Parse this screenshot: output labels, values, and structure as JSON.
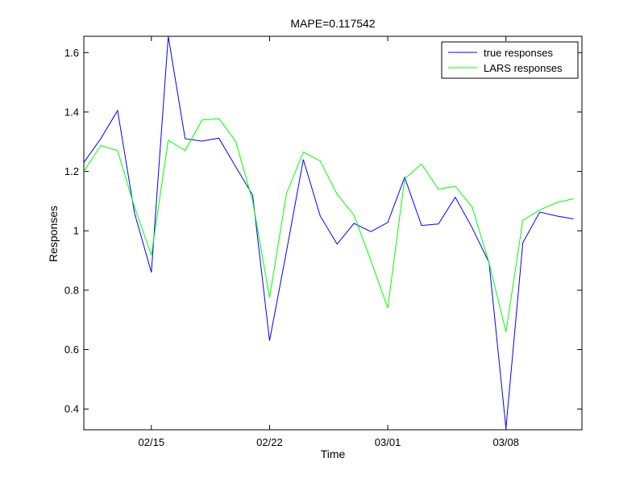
{
  "chart_data": {
    "type": "line",
    "title": "MAPE=0.117542",
    "xlabel": "Time",
    "ylabel": "Responses",
    "x_tick_labels": [
      "02/15",
      "02/22",
      "03/01",
      "03/08"
    ],
    "x_tick_index": [
      4,
      11,
      18,
      25
    ],
    "y_ticks": [
      0.4,
      0.6,
      0.8,
      1,
      1.2,
      1.4,
      1.6
    ],
    "y_tick_labels": [
      "0.4",
      "0.6",
      "0.8",
      "1",
      "1.2",
      "1.4",
      "1.6"
    ],
    "xlim": [
      0,
      29.5
    ],
    "ylim": [
      0.33,
      1.655
    ],
    "legend_position": "top-right",
    "grid": false,
    "series": [
      {
        "name": "true responses",
        "color": "#0000ff",
        "values": [
          1.23,
          1.31,
          1.405,
          1.06,
          0.86,
          1.655,
          1.31,
          1.302,
          1.312,
          1.215,
          1.12,
          0.63,
          0.93,
          1.24,
          1.05,
          0.955,
          1.025,
          0.997,
          1.028,
          1.18,
          1.018,
          1.023,
          1.113,
          1.01,
          0.893,
          0.335,
          0.96,
          1.063,
          1.05,
          1.04
        ]
      },
      {
        "name": "LARS responses",
        "color": "#00ff00",
        "values": [
          1.2,
          1.287,
          1.27,
          1.08,
          0.918,
          1.305,
          1.27,
          1.373,
          1.378,
          1.3,
          1.1,
          0.775,
          1.125,
          1.265,
          1.235,
          1.123,
          1.053,
          0.9,
          0.74,
          1.175,
          1.225,
          1.14,
          1.15,
          1.08,
          0.892,
          0.66,
          1.035,
          1.07,
          1.095,
          1.108
        ]
      }
    ]
  }
}
